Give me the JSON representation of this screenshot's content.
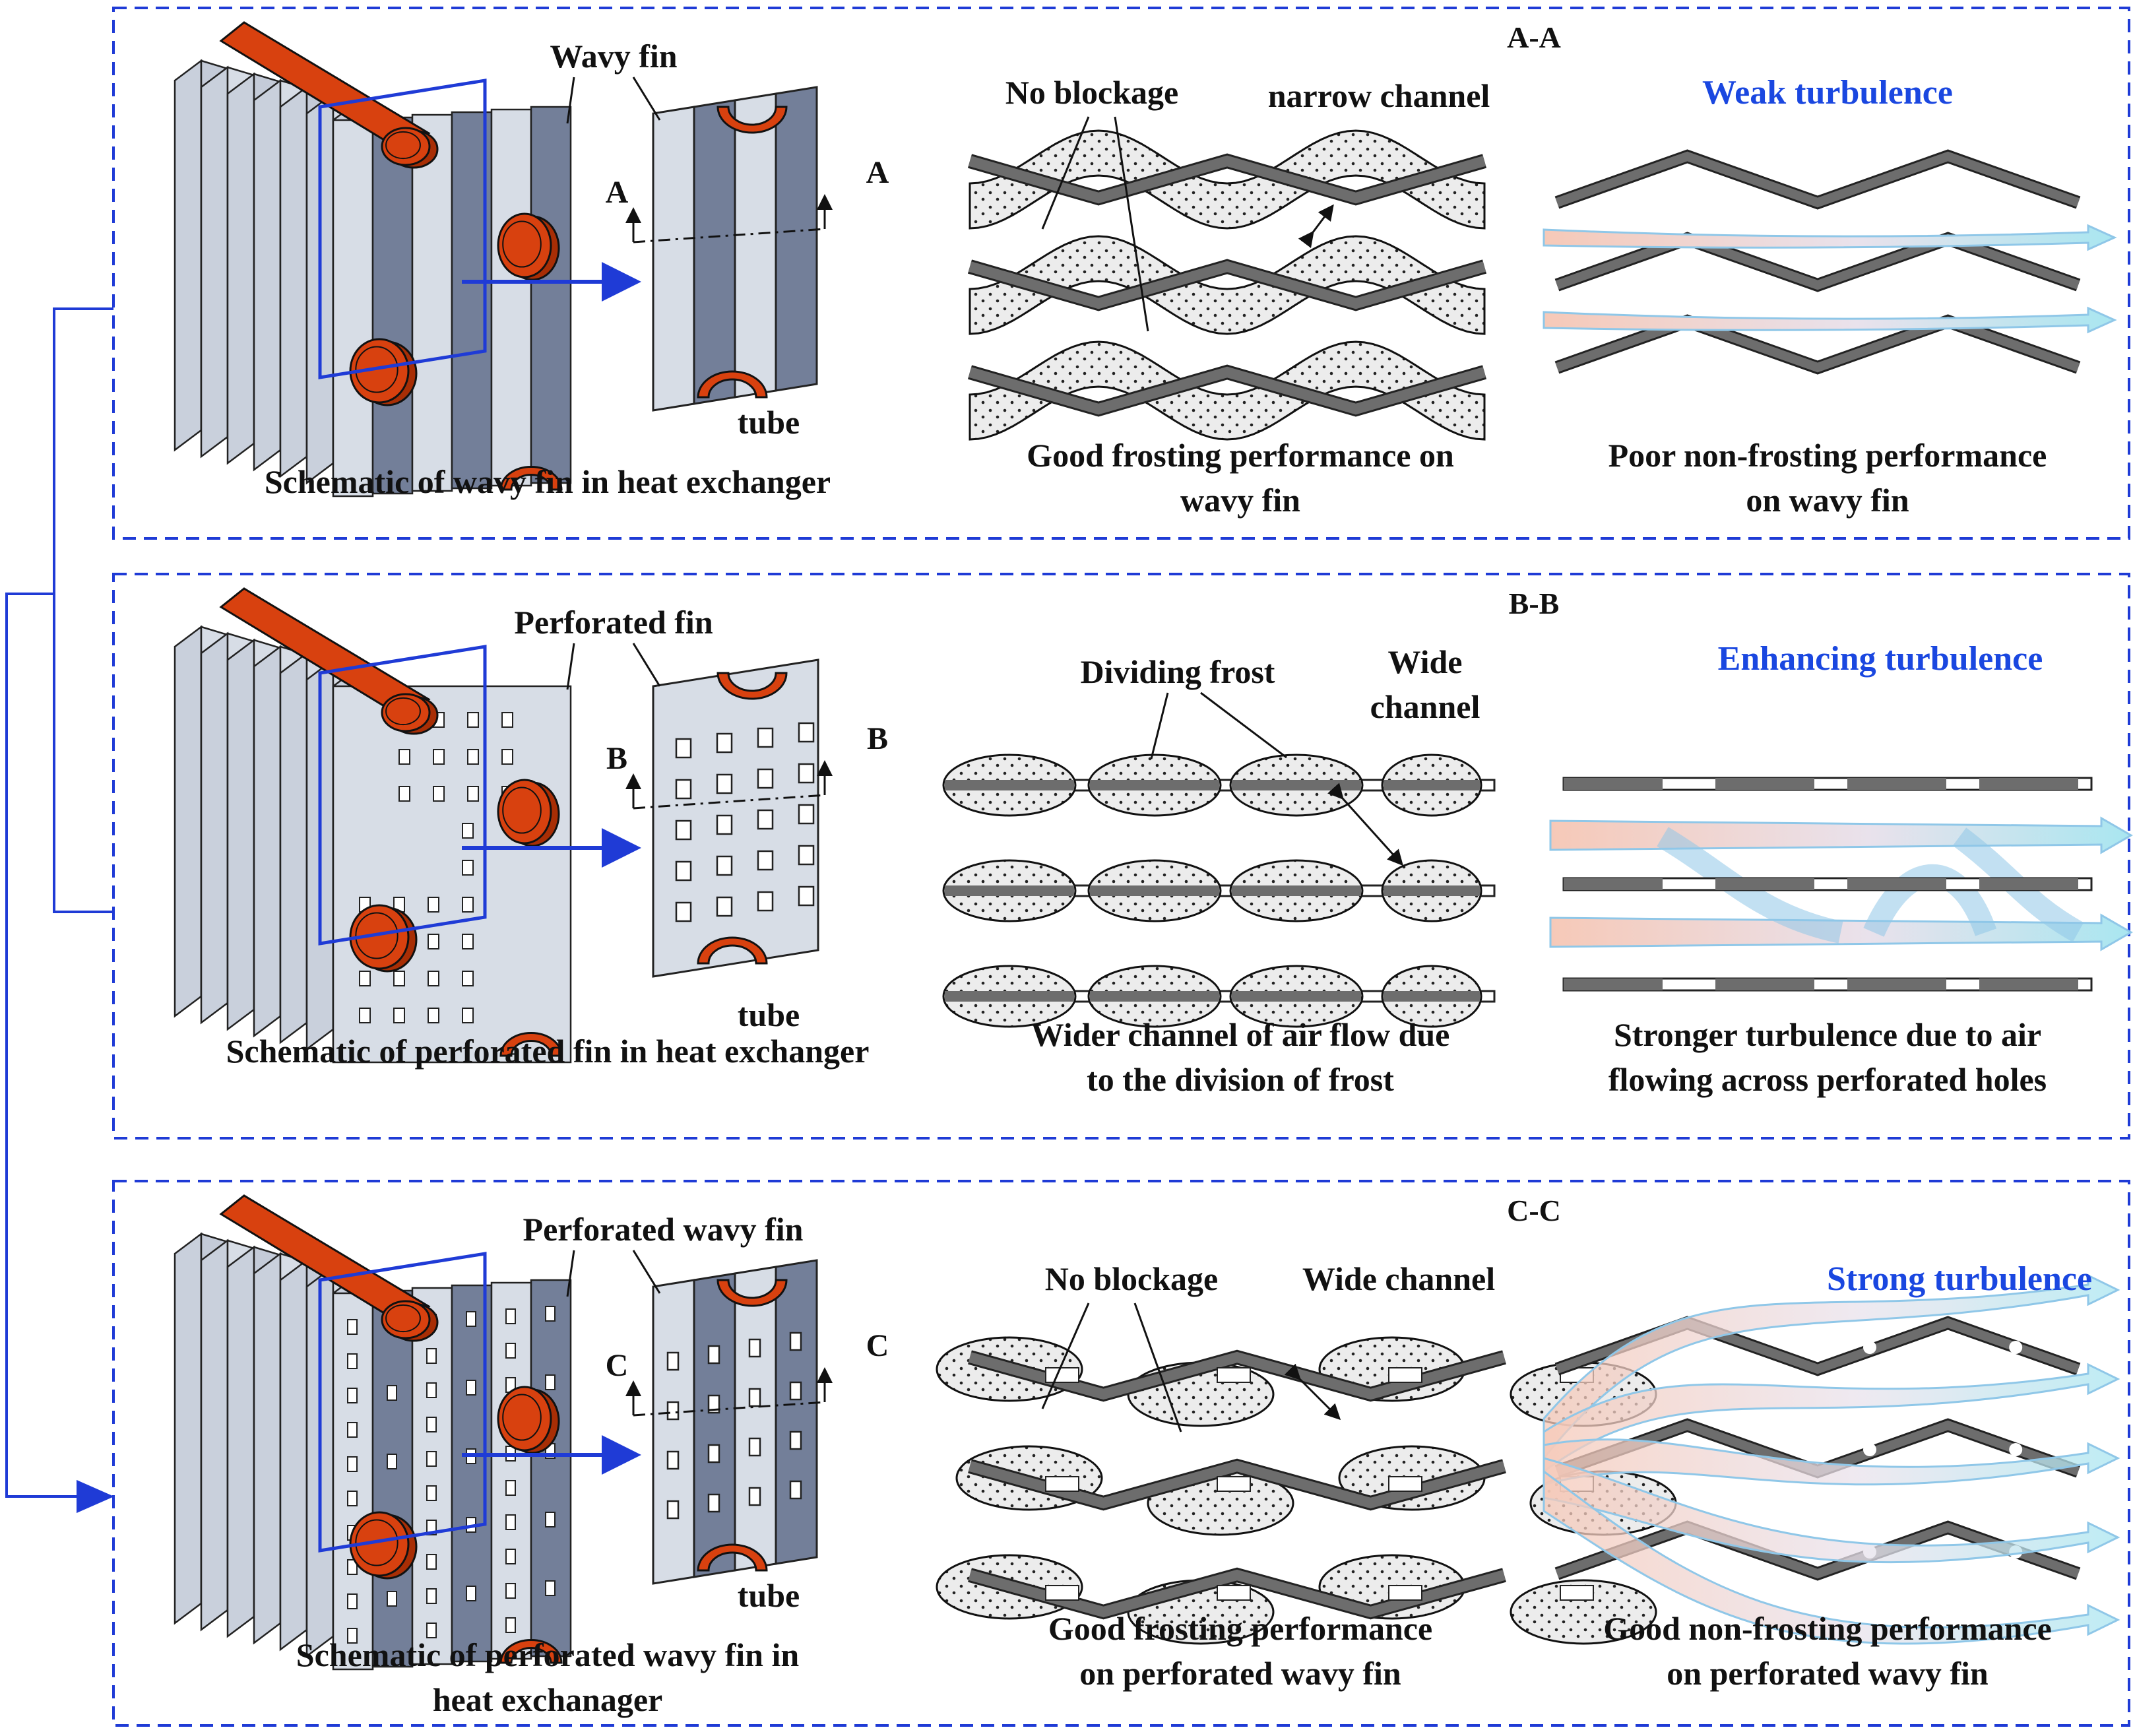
{
  "colors": {
    "frame": "#1f3bd6",
    "accent_blue": "#1a47e0",
    "fin": "#d7dde6",
    "fin_dark": "#737f99",
    "tube": "#d8410f",
    "frost_fill": "#e8e8e8",
    "fin_section": "#6d6d6d"
  },
  "panels": [
    {
      "section_label": "A-A",
      "fin_label": "Wavy fin",
      "tube_label": "tube",
      "cut_letter": "A",
      "schematic_caption": [
        "Schematic of wavy fin in heat exchanger"
      ],
      "frost_labels": [
        "No blockage",
        "narrow channel"
      ],
      "frost_caption": [
        "Good frosting performance on",
        "wavy fin"
      ],
      "flow_label": "Weak turbulence",
      "flow_caption": [
        "Poor non-frosting performance",
        "on wavy fin"
      ]
    },
    {
      "section_label": "B-B",
      "fin_label": "Perforated fin",
      "tube_label": "tube",
      "cut_letter": "B",
      "schematic_caption": [
        "Schematic of perforated fin in heat exchanger"
      ],
      "frost_labels": [
        "Dividing frost",
        "Wide",
        "channel"
      ],
      "frost_caption": [
        "Wider channel of air flow due",
        "to the division of frost"
      ],
      "flow_label": "Enhancing turbulence",
      "flow_caption": [
        "Stronger turbulence due to air",
        "flowing across perforated holes"
      ]
    },
    {
      "section_label": "C-C",
      "fin_label": "Perforated wavy fin",
      "tube_label": "tube",
      "cut_letter": "C",
      "schematic_caption": [
        "Schematic of perforated wavy fin in",
        "heat exchanager"
      ],
      "frost_labels": [
        "No blockage",
        "Wide channel"
      ],
      "frost_caption": [
        "Good frosting performance",
        "on perforated wavy fin"
      ],
      "flow_label": "Strong turbulence",
      "flow_caption": [
        "Good non-frosting performance",
        "on perforated wavy fin"
      ]
    }
  ]
}
